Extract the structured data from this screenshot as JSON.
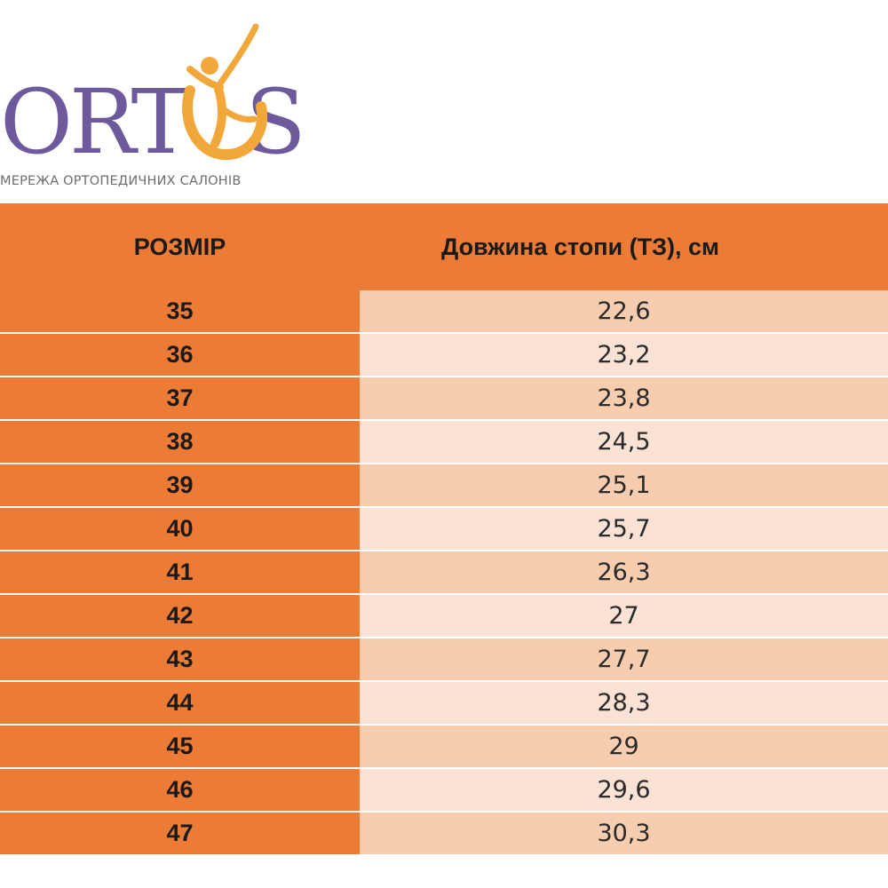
{
  "logo": {
    "brand": "ORTOS",
    "tagline": "МЕРЕЖА ОРТОПЕДИЧНИХ САЛОНІВ",
    "colors": {
      "wordmark": "#6d5a9c",
      "figure": "#f2a73b",
      "tagline": "#6d6d6d"
    }
  },
  "table": {
    "headers": {
      "size": "РОЗМІР",
      "length": "Довжина стопи (ТЗ), см"
    },
    "colors": {
      "accent": "#ec7b35",
      "row_dark": "#f7cdb0",
      "row_light": "#fae3d5"
    },
    "rows": [
      {
        "size": "35",
        "length": "22,6"
      },
      {
        "size": "36",
        "length": "23,2"
      },
      {
        "size": "37",
        "length": "23,8"
      },
      {
        "size": "38",
        "length": "24,5"
      },
      {
        "size": "39",
        "length": "25,1"
      },
      {
        "size": "40",
        "length": "25,7"
      },
      {
        "size": "41",
        "length": "26,3"
      },
      {
        "size": "42",
        "length": "27"
      },
      {
        "size": "43",
        "length": "27,7"
      },
      {
        "size": "44",
        "length": "28,3"
      },
      {
        "size": "45",
        "length": "29"
      },
      {
        "size": "46",
        "length": "29,6"
      },
      {
        "size": "47",
        "length": "30,3"
      }
    ]
  }
}
